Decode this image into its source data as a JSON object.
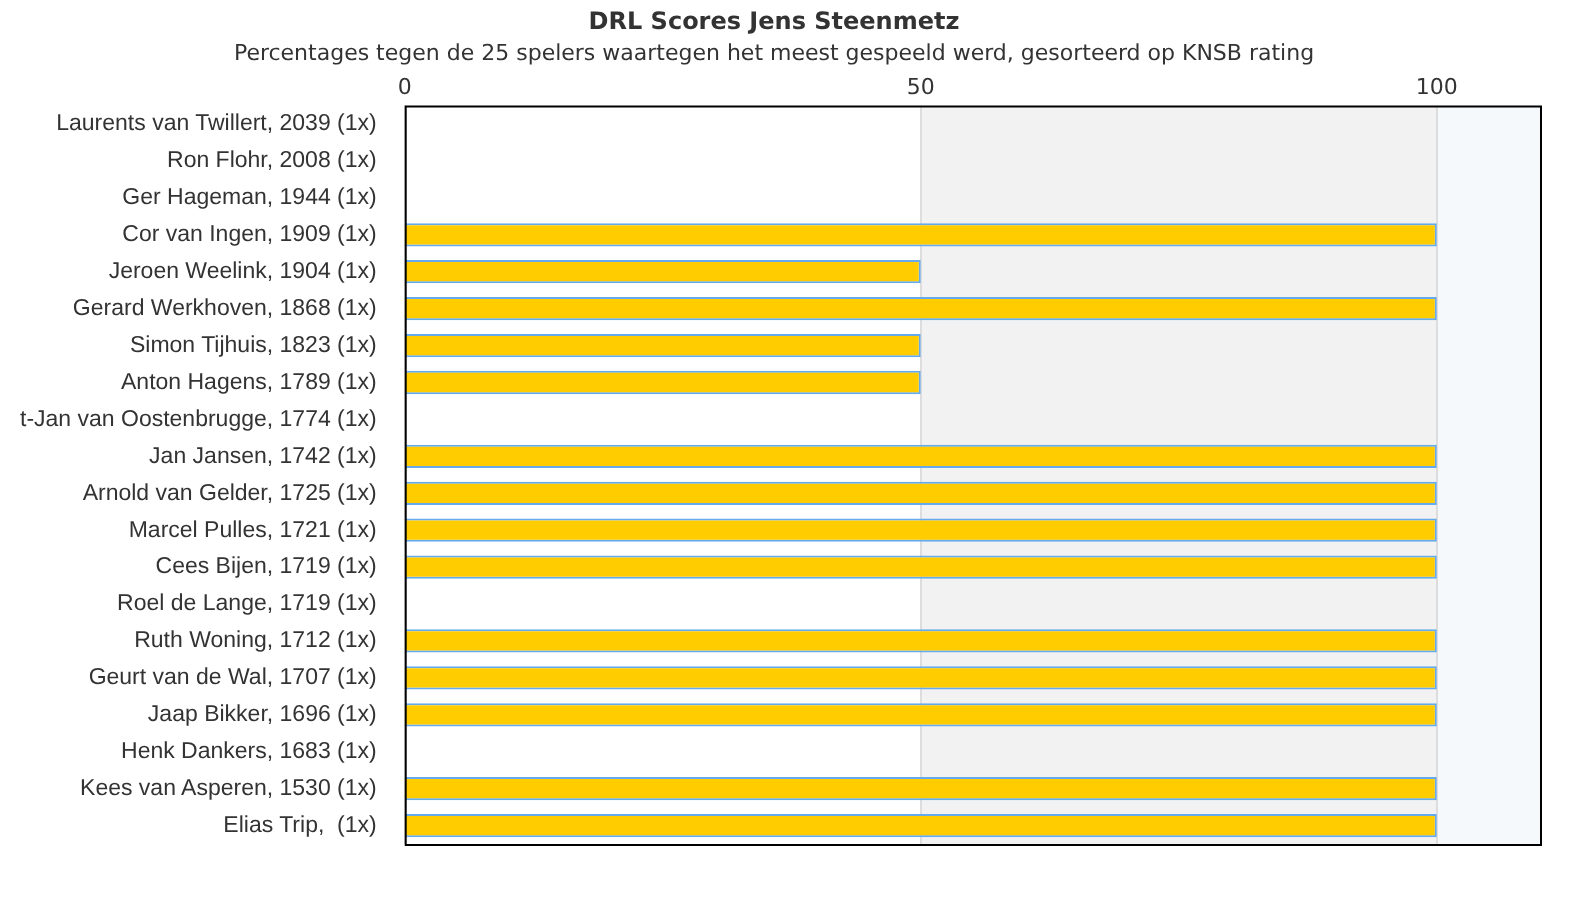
{
  "chart_data": {
    "type": "bar",
    "orientation": "horizontal",
    "title": "DRL Scores Jens Steenmetz",
    "subtitle": "Percentages tegen de 25 spelers waartegen het meest gespeeld werd, gesorteerd op KNSB rating",
    "categories": [
      "Laurents van Twillert, 2039 (1x)",
      "Ron Flohr, 2008 (1x)",
      "Ger Hageman, 1944 (1x)",
      "Cor van Ingen, 1909 (1x)",
      "Jeroen Weelink, 1904 (1x)",
      "Gerard Werkhoven, 1868 (1x)",
      "Simon Tijhuis, 1823 (1x)",
      "Anton Hagens, 1789 (1x)",
      "t-Jan van Oostenbrugge, 1774 (1x)",
      "Jan Jansen, 1742 (1x)",
      "Arnold van Gelder, 1725 (1x)",
      "Marcel Pulles, 1721 (1x)",
      "Cees Bijen, 1719 (1x)",
      "Roel de Lange, 1719 (1x)",
      "Ruth Woning, 1712 (1x)",
      "Geurt van de Wal, 1707 (1x)",
      "Jaap Bikker, 1696 (1x)",
      "Henk Dankers, 1683 (1x)",
      "Kees van Asperen, 1530 (1x)",
      "Elias Trip,  (1x)"
    ],
    "values": [
      0,
      0,
      0,
      100,
      50,
      100,
      50,
      50,
      0,
      100,
      100,
      100,
      100,
      0,
      100,
      100,
      100,
      0,
      100,
      100
    ],
    "color": "#ffcc00",
    "xlim": [
      0,
      110
    ],
    "xticks": [
      0,
      50,
      100
    ],
    "grid": "x",
    "bands": [
      {
        "axis": "x",
        "from": 50,
        "to": 100,
        "color": "#f2f2f2"
      },
      {
        "axis": "x",
        "from": 100,
        "to": 110,
        "color": "#f6f9fc"
      }
    ]
  }
}
